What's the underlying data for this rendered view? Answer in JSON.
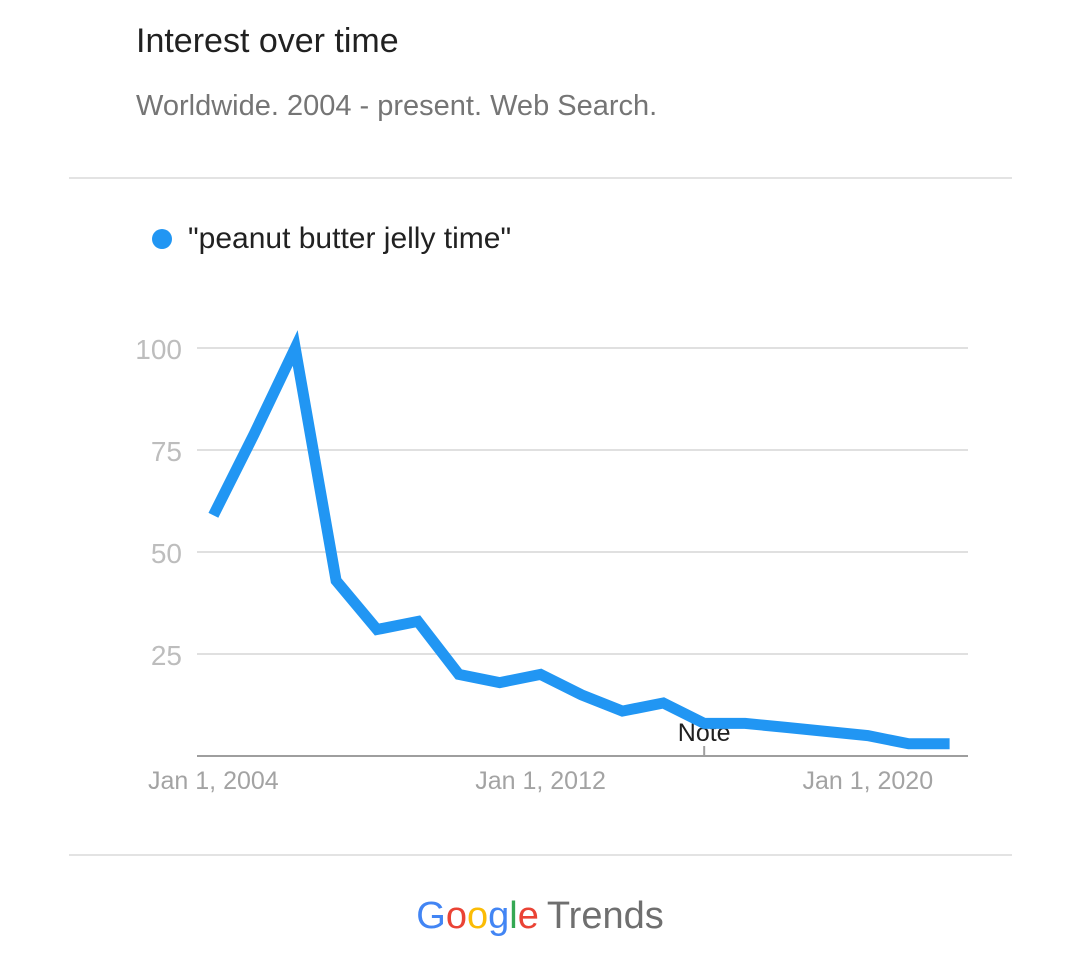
{
  "header": {
    "title": "Interest over time",
    "subtitle": "Worldwide. 2004 - present. Web Search."
  },
  "legend": {
    "label": "\"peanut butter jelly time\"",
    "color": "#2196f3"
  },
  "chart_data": {
    "type": "line",
    "x": [
      2004,
      2005,
      2006,
      2007,
      2008,
      2009,
      2010,
      2011,
      2012,
      2013,
      2014,
      2015,
      2016,
      2017,
      2018,
      2019,
      2020,
      2021,
      2022
    ],
    "series": [
      {
        "name": "\"peanut butter jelly time\"",
        "values": [
          59,
          79,
          100,
          43,
          31,
          33,
          20,
          18,
          20,
          15,
          11,
          13,
          8,
          8,
          7,
          6,
          5,
          3,
          3
        ]
      }
    ],
    "ylim": [
      0,
      100
    ],
    "yticks": [
      25,
      50,
      75,
      100
    ],
    "ytick_labels": [
      "25",
      "50",
      "75",
      "100"
    ],
    "xticks": [
      2004,
      2012,
      2020
    ],
    "xtick_labels": [
      "Jan 1, 2004",
      "Jan 1, 2012",
      "Jan 1, 2020"
    ],
    "annotation": {
      "x": 2016,
      "label": "Note"
    },
    "grid": true,
    "line_color": "#2196f3"
  },
  "footer": {
    "brand": "Google",
    "product": "Trends",
    "brand_colors": [
      "#4285f4",
      "#ea4335",
      "#fbbc05",
      "#4285f4",
      "#34a853",
      "#ea4335"
    ]
  }
}
